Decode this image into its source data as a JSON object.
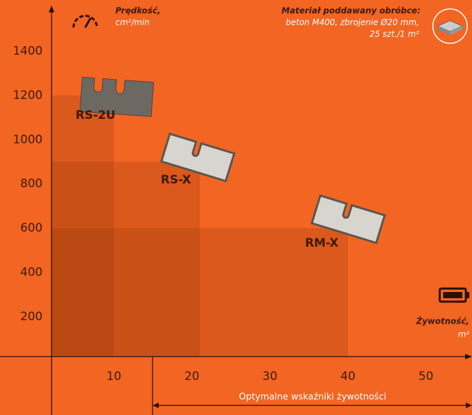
{
  "chart_data": {
    "type": "rect",
    "speed_label": "Prędkość,",
    "speed_unit": "cm²/min",
    "material_title": "Materiał poddawany obróbce:",
    "material_line1": "beton M400, zbrojenie Ø20 mm,",
    "material_line2": "25 szt./1 m²",
    "life_label": "Żywotność,",
    "life_unit": "m²",
    "range_label": "Optymalne wskaźniki żywotności",
    "series": [
      {
        "name": "RS-2U",
        "x": 10,
        "y": 1200
      },
      {
        "name": "RS-X",
        "x": 21,
        "y": 900
      },
      {
        "name": "RM-X",
        "x": 40,
        "y": 600
      }
    ],
    "color": "#8a3208",
    "xlim": [
      -4.6,
      55.9
    ],
    "xticks": [
      10,
      20,
      30,
      40,
      50
    ],
    "ylim": [
      20,
      1600
    ],
    "yticks": [
      200,
      400,
      600,
      800,
      1000,
      1200,
      1400
    ]
  }
}
